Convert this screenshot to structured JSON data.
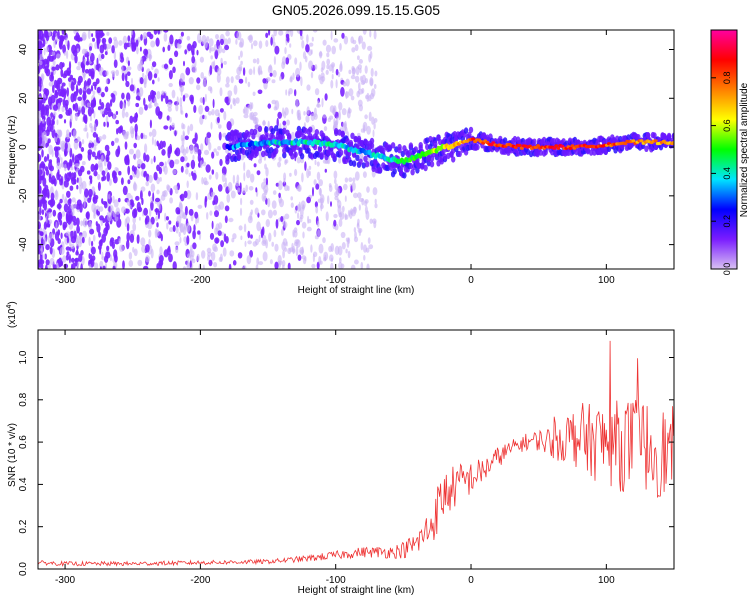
{
  "title": "GN05.2026.099.15.15.G05",
  "colors": {
    "scatter_main": "#7a22ff",
    "scatter_faint": "#c9b2f5",
    "snr_line": "#ee3333",
    "axis": "#000000"
  },
  "chart_data": [
    {
      "type": "heatmap",
      "name": "spectrogram",
      "title": "GN05.2026.099.15.15.G05",
      "xlabel": "Height of straight line (km)",
      "ylabel": "Frequency (Hz)",
      "xlim": [
        -320,
        150
      ],
      "ylim": [
        -50,
        48
      ],
      "x_ticks": [
        -300,
        -200,
        -100,
        0,
        100
      ],
      "y_ticks": [
        -40,
        -20,
        0,
        20,
        40
      ],
      "colorbar": {
        "label": "Normalized spectral amplitude",
        "range": [
          0.0,
          1.0
        ],
        "ticks": [
          "0.0",
          "0.2",
          "0.4",
          "0.6",
          "0.8"
        ],
        "colormap": [
          "#d9c2f2",
          "#7a1cff",
          "#0000ff",
          "#00e5ff",
          "#00ff00",
          "#ffff00",
          "#ff8000",
          "#ff0000",
          "#ff00a0"
        ]
      },
      "dominant_frequency_track": {
        "x": [
          -180,
          -150,
          -120,
          -100,
          -80,
          -60,
          -50,
          -40,
          -30,
          -20,
          -10,
          0,
          20,
          40,
          60,
          80,
          100,
          120,
          150
        ],
        "y": [
          0,
          2,
          2,
          1,
          -2,
          -5,
          -6,
          -4,
          -2,
          0,
          1,
          3,
          1,
          0,
          0,
          0,
          1,
          2,
          2
        ],
        "amplitude": [
          0.3,
          0.35,
          0.4,
          0.4,
          0.35,
          0.4,
          0.45,
          0.5,
          0.55,
          0.6,
          0.7,
          0.8,
          0.85,
          0.85,
          0.85,
          0.85,
          0.8,
          0.75,
          0.7
        ]
      },
      "noise_region_x": [
        -320,
        -70
      ]
    },
    {
      "type": "line",
      "name": "snr",
      "xlabel": "Height of straight line (km)",
      "ylabel": "SNR (10 * v/v)",
      "y_multiplier_label": "(x10",
      "y_multiplier_exp": "4",
      "xlim": [
        -320,
        150
      ],
      "ylim": [
        0,
        1.13
      ],
      "x_ticks": [
        -300,
        -200,
        -100,
        0,
        100
      ],
      "y_ticks": [
        "0.0",
        "0.2",
        "0.4",
        "0.6",
        "0.8",
        "1.0"
      ],
      "series": [
        {
          "x": [
            -320,
            -300,
            -250,
            -200,
            -150,
            -120,
            -100,
            -80,
            -60,
            -50,
            -40,
            -30,
            -25,
            -20,
            -10,
            0,
            10,
            20,
            30,
            40,
            50,
            60,
            70,
            80,
            90,
            100,
            110,
            120,
            130,
            140,
            150
          ],
          "y": [
            0.03,
            0.025,
            0.025,
            0.03,
            0.035,
            0.05,
            0.065,
            0.08,
            0.08,
            0.09,
            0.12,
            0.2,
            0.28,
            0.35,
            0.4,
            0.43,
            0.47,
            0.53,
            0.57,
            0.6,
            0.61,
            0.6,
            0.62,
            0.63,
            0.6,
            0.6,
            0.58,
            0.6,
            0.58,
            0.55,
            0.55
          ],
          "noise_amplitude": [
            0.01,
            0.01,
            0.01,
            0.01,
            0.01,
            0.015,
            0.02,
            0.025,
            0.03,
            0.04,
            0.06,
            0.1,
            0.12,
            0.12,
            0.1,
            0.08,
            0.06,
            0.05,
            0.04,
            0.04,
            0.05,
            0.08,
            0.12,
            0.16,
            0.18,
            0.2,
            0.22,
            0.22,
            0.22,
            0.22,
            0.22
          ]
        }
      ]
    }
  ]
}
